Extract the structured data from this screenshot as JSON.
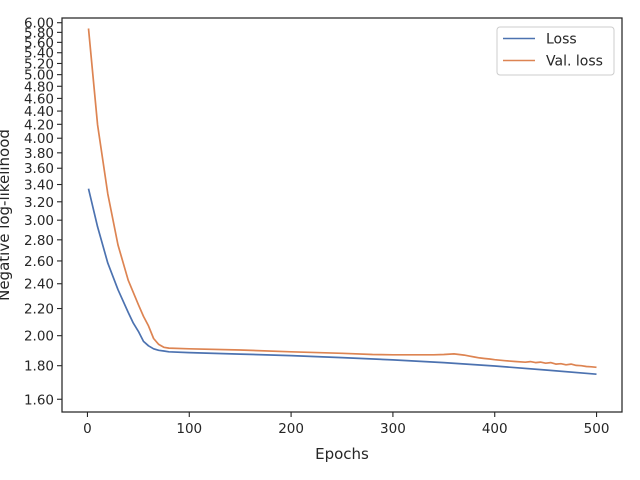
{
  "chart_data": {
    "type": "line",
    "xlabel": "Epochs",
    "ylabel": "Negative log-likelihood",
    "yscale": "log",
    "xlim": [
      -25,
      525
    ],
    "ylim": [
      1.53,
      6.1
    ],
    "grid": false,
    "legend_position": "top-right",
    "x_ticks": [
      0,
      100,
      200,
      300,
      400,
      500
    ],
    "x_tick_labels": [
      "0",
      "100",
      "200",
      "300",
      "400",
      "500"
    ],
    "y_ticks": [
      1.6,
      1.8,
      2.0,
      2.2,
      2.4,
      2.6,
      2.8,
      3.0,
      3.2,
      3.4,
      3.6,
      3.8,
      4.0,
      4.2,
      4.4,
      4.6,
      4.8,
      5.0,
      5.2,
      5.4,
      5.6,
      5.8,
      6.0
    ],
    "y_tick_labels": [
      "1.60",
      "1.80",
      "2.00",
      "2.20",
      "2.40",
      "2.60",
      "2.80",
      "3.00",
      "3.20",
      "3.40",
      "3.60",
      "3.80",
      "4.00",
      "4.20",
      "4.40",
      "4.60",
      "4.80",
      "5.00",
      "5.20",
      "5.40",
      "5.60",
      "5.80",
      "6.00"
    ],
    "series": [
      {
        "name": "Loss",
        "color": "#4c72b0",
        "x": [
          1,
          10,
          20,
          30,
          40,
          45,
          50,
          55,
          60,
          65,
          70,
          75,
          80,
          100,
          150,
          200,
          250,
          300,
          350,
          400,
          450,
          500
        ],
        "y": [
          3.35,
          2.93,
          2.58,
          2.35,
          2.17,
          2.09,
          2.03,
          1.96,
          1.93,
          1.91,
          1.9,
          1.895,
          1.89,
          1.885,
          1.875,
          1.865,
          1.852,
          1.837,
          1.82,
          1.798,
          1.773,
          1.747
        ]
      },
      {
        "name": "Val. loss",
        "color": "#dd8452",
        "x": [
          1,
          10,
          20,
          30,
          40,
          50,
          55,
          60,
          65,
          70,
          75,
          80,
          100,
          150,
          200,
          250,
          280,
          300,
          320,
          340,
          350,
          360,
          370,
          375,
          380,
          385,
          390,
          395,
          400,
          410,
          420,
          430,
          435,
          440,
          445,
          450,
          455,
          460,
          465,
          470,
          475,
          480,
          485,
          490,
          495,
          500
        ],
        "y": [
          5.88,
          4.19,
          3.29,
          2.75,
          2.43,
          2.23,
          2.14,
          2.07,
          1.98,
          1.94,
          1.92,
          1.915,
          1.91,
          1.902,
          1.89,
          1.88,
          1.872,
          1.87,
          1.87,
          1.87,
          1.872,
          1.876,
          1.868,
          1.862,
          1.856,
          1.85,
          1.846,
          1.843,
          1.838,
          1.832,
          1.827,
          1.822,
          1.826,
          1.82,
          1.823,
          1.816,
          1.82,
          1.81,
          1.813,
          1.806,
          1.81,
          1.802,
          1.8,
          1.795,
          1.793,
          1.79
        ]
      }
    ]
  }
}
